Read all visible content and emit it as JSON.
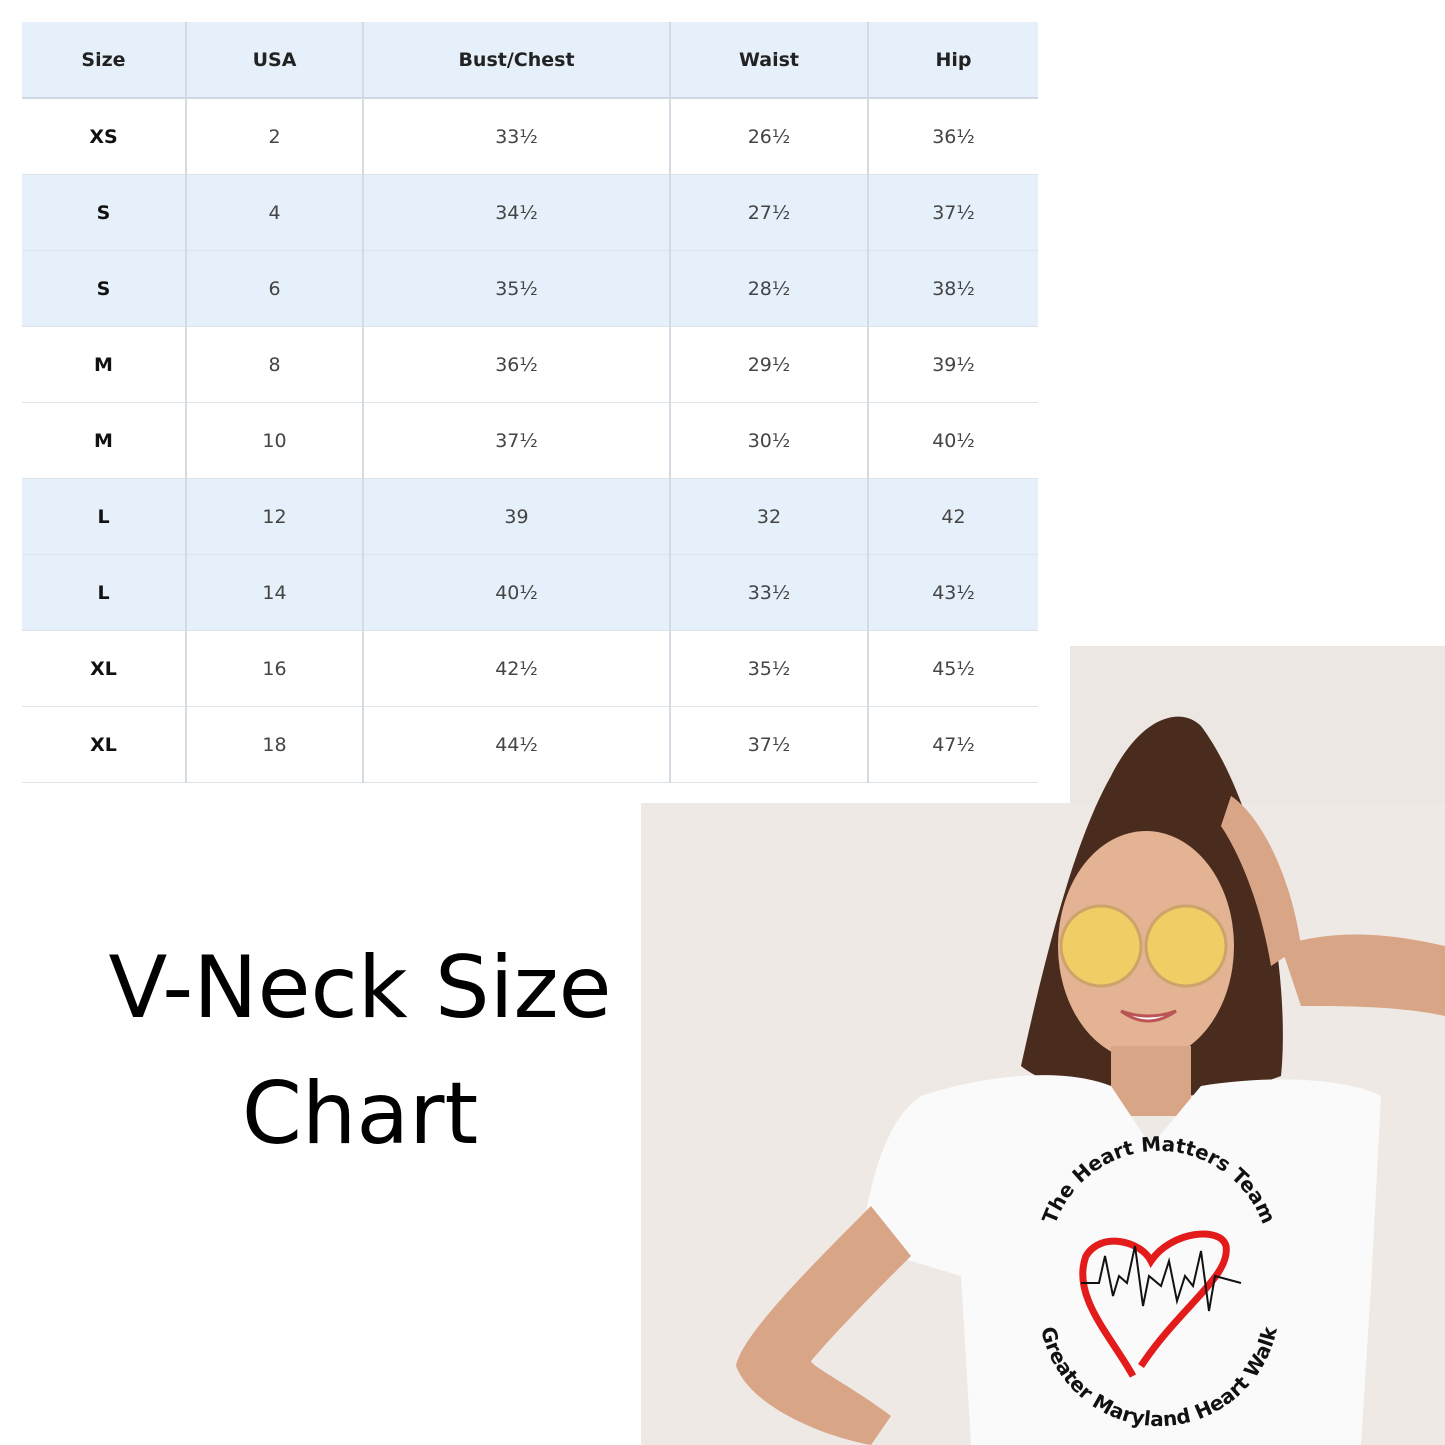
{
  "table": {
    "headers": [
      "Size",
      "USA",
      "Bust/Chest",
      "Waist",
      "Hip"
    ],
    "rows": [
      {
        "cells": [
          "XS",
          "2",
          "33½",
          "26½",
          "36½"
        ],
        "shade": "white"
      },
      {
        "cells": [
          "S",
          "4",
          "34½",
          "27½",
          "37½"
        ],
        "shade": "blue"
      },
      {
        "cells": [
          "S",
          "6",
          "35½",
          "28½",
          "38½"
        ],
        "shade": "blue"
      },
      {
        "cells": [
          "M",
          "8",
          "36½",
          "29½",
          "39½"
        ],
        "shade": "white"
      },
      {
        "cells": [
          "M",
          "10",
          "37½",
          "30½",
          "40½"
        ],
        "shade": "white"
      },
      {
        "cells": [
          "L",
          "12",
          "39",
          "32",
          "42"
        ],
        "shade": "blue"
      },
      {
        "cells": [
          "L",
          "14",
          "40½",
          "33½",
          "43½"
        ],
        "shade": "blue"
      },
      {
        "cells": [
          "XL",
          "16",
          "42½",
          "35½",
          "45½"
        ],
        "shade": "white"
      },
      {
        "cells": [
          "XL",
          "18",
          "44½",
          "37½",
          "47½"
        ],
        "shade": "white"
      }
    ],
    "colors": {
      "header_bg": "#e6f0fa",
      "stripe_bg": "#e6f0fa"
    }
  },
  "title": {
    "line1": "V-Neck Size",
    "line2": "Chart"
  },
  "logo": {
    "top_text": "The Heart Matters Team",
    "bottom_text": "Greater Maryland Heart Walk",
    "heart_color": "#e31b1b"
  }
}
